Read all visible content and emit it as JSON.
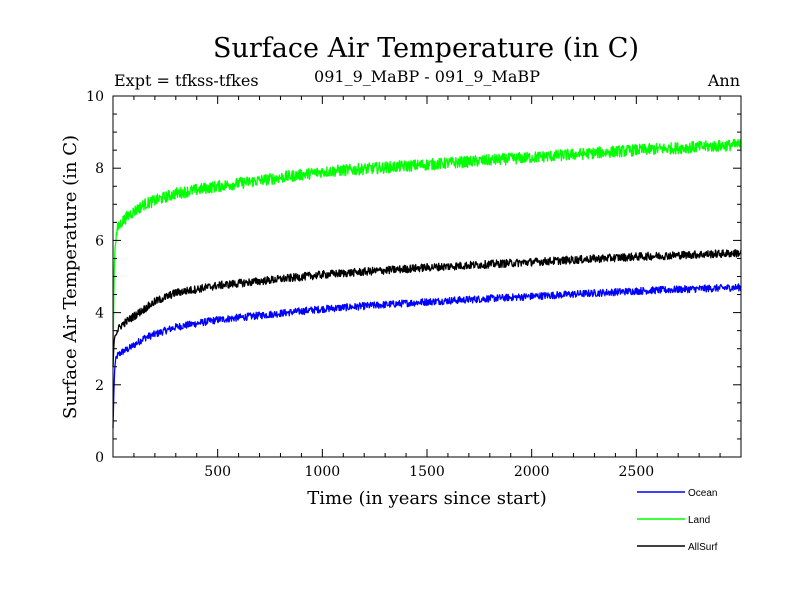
{
  "chart_data": {
    "type": "line",
    "title": "Surface Air Temperature (in C)",
    "subtitle_left": "Expt = tfkss-tfkes",
    "subtitle_center": "091_9_MaBP - 091_9_MaBP",
    "subtitle_right": "Ann",
    "xlabel": "Time (in years since start)",
    "ylabel": "Surface Air Temperature (in C)",
    "xlim": [
      0,
      3000
    ],
    "ylim": [
      0,
      10
    ],
    "x_ticks": [
      500,
      1000,
      1500,
      2000,
      2500
    ],
    "y_ticks": [
      0,
      2,
      4,
      6,
      8,
      10
    ],
    "legend_position": "bottom-right",
    "series": [
      {
        "name": "Ocean",
        "color": "#0000ff",
        "noise": 0.1,
        "x": [
          0,
          5,
          10,
          20,
          40,
          75,
          100,
          150,
          200,
          300,
          500,
          750,
          1000,
          1500,
          2000,
          2500,
          3000
        ],
        "values": [
          0.8,
          2.0,
          2.6,
          2.8,
          2.9,
          3.0,
          3.1,
          3.3,
          3.4,
          3.6,
          3.8,
          3.95,
          4.1,
          4.3,
          4.45,
          4.6,
          4.7
        ]
      },
      {
        "name": "Land",
        "color": "#00ff00",
        "noise": 0.16,
        "x": [
          0,
          5,
          10,
          20,
          40,
          75,
          100,
          150,
          200,
          300,
          500,
          750,
          1000,
          1500,
          2000,
          2500,
          3000
        ],
        "values": [
          2.5,
          5.0,
          5.9,
          6.3,
          6.5,
          6.7,
          6.8,
          7.0,
          7.1,
          7.3,
          7.5,
          7.7,
          7.9,
          8.1,
          8.3,
          8.5,
          8.65
        ]
      },
      {
        "name": "AllSurf",
        "color": "#000000",
        "noise": 0.11,
        "x": [
          0,
          5,
          10,
          20,
          40,
          75,
          100,
          150,
          200,
          300,
          500,
          750,
          1000,
          1500,
          2000,
          2500,
          3000
        ],
        "values": [
          2.5,
          3.2,
          3.4,
          3.5,
          3.65,
          3.8,
          3.9,
          4.1,
          4.3,
          4.55,
          4.75,
          4.9,
          5.05,
          5.25,
          5.4,
          5.55,
          5.65
        ]
      }
    ]
  }
}
